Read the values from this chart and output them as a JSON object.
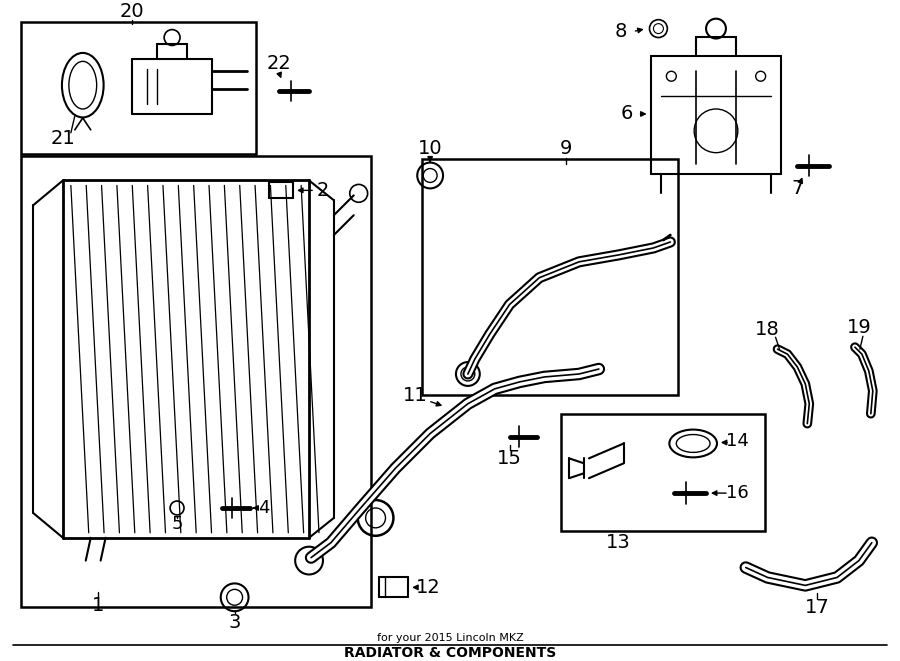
{
  "bg_color": "#ffffff",
  "line_color": "#000000",
  "title": "RADIATOR & COMPONENTS",
  "fig_w": 9.0,
  "fig_h": 6.61,
  "dpi": 100
}
